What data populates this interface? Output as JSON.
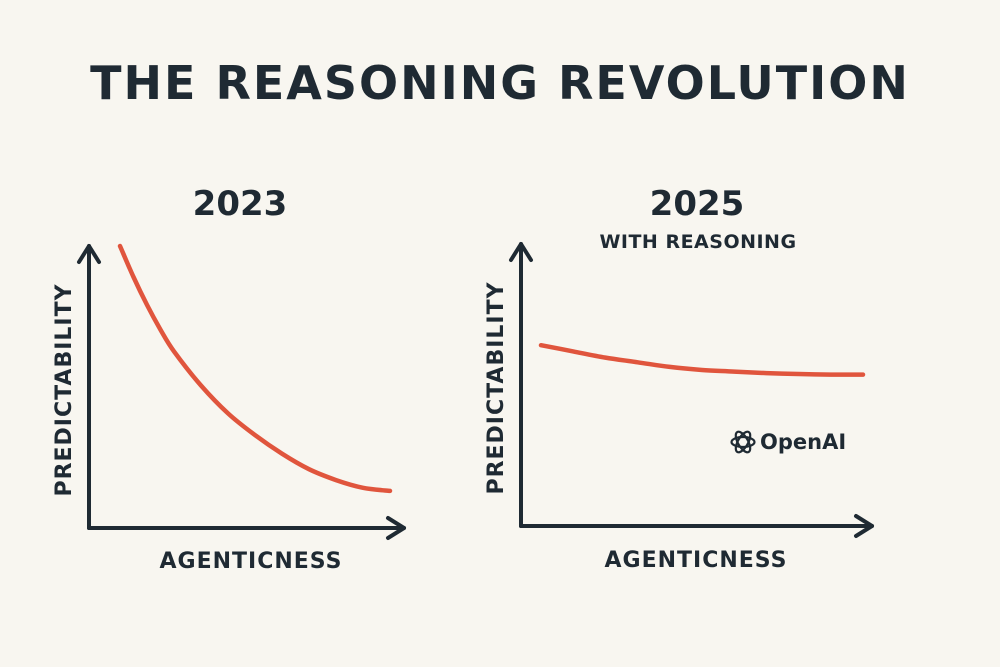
{
  "title": "THE REASONING REVOLUTION",
  "brand": {
    "logo_text": "OpenAI",
    "logo_icon": "openai-logo-icon"
  },
  "colors": {
    "background": "#f8f6f0",
    "ink": "#1f2a33",
    "curve": "#e0553d"
  },
  "chart_data": [
    {
      "type": "line",
      "title": "2023",
      "subtitle": "",
      "xlabel": "AGENTICNESS",
      "ylabel": "PREDICTABILITY",
      "xlim": [
        0,
        1
      ],
      "ylim": [
        0,
        1
      ],
      "grid": false,
      "series": [
        {
          "name": "predictability",
          "x": [
            0.0,
            0.05,
            0.1,
            0.15,
            0.2,
            0.3,
            0.4,
            0.5,
            0.6,
            0.7,
            0.8,
            0.9,
            1.0
          ],
          "y": [
            0.9,
            0.8,
            0.71,
            0.63,
            0.56,
            0.45,
            0.36,
            0.29,
            0.23,
            0.18,
            0.145,
            0.12,
            0.11
          ]
        }
      ]
    },
    {
      "type": "line",
      "title": "2025",
      "subtitle": "WITH REASONING",
      "xlabel": "AGENTICNESS",
      "ylabel": "PREDICTABILITY",
      "xlim": [
        0,
        1
      ],
      "ylim": [
        0,
        1
      ],
      "grid": false,
      "series": [
        {
          "name": "predictability",
          "x": [
            0.0,
            0.1,
            0.2,
            0.3,
            0.4,
            0.5,
            0.6,
            0.7,
            0.8,
            0.9,
            1.0
          ],
          "y": [
            0.58,
            0.56,
            0.54,
            0.525,
            0.51,
            0.5,
            0.495,
            0.49,
            0.487,
            0.485,
            0.485
          ]
        }
      ]
    }
  ]
}
